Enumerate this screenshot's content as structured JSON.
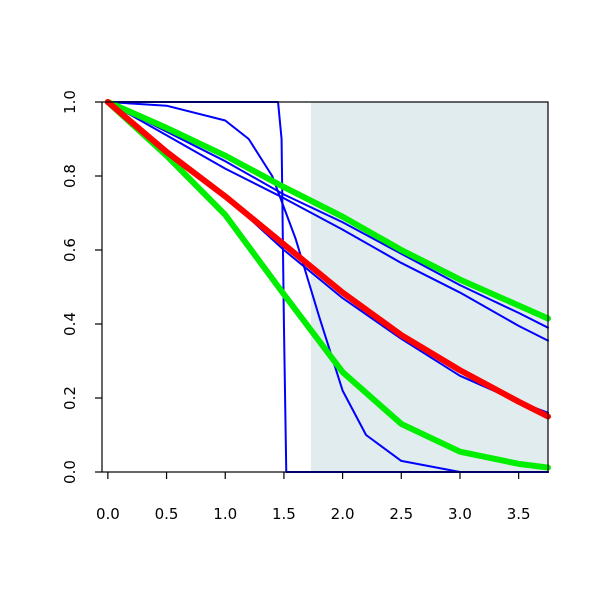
{
  "chart_data": {
    "type": "line",
    "title": "",
    "xlabel": "",
    "ylabel": "",
    "xlim": [
      -0.05,
      3.75
    ],
    "ylim": [
      0.0,
      1.0
    ],
    "grid": false,
    "legend": "none",
    "x_ticks": [
      0.0,
      0.5,
      1.0,
      1.5,
      2.0,
      2.5,
      3.0,
      3.5
    ],
    "x_tick_labels": [
      "0.0",
      "0.5",
      "1.0",
      "1.5",
      "2.0",
      "2.5",
      "3.0",
      "3.5"
    ],
    "y_ticks": [
      0.0,
      0.2,
      0.4,
      0.6,
      0.8,
      1.0
    ],
    "y_tick_labels": [
      "0.0",
      "0.2",
      "0.4",
      "0.6",
      "0.8",
      "1.0"
    ],
    "shaded_region": {
      "x_from": 1.73,
      "x_to": 3.75,
      "color": "#e0eced"
    },
    "series": [
      {
        "color": "#0000ff",
        "width": "thin",
        "x": [
          0,
          1.0,
          1.45,
          1.48,
          1.5,
          1.52,
          3.75
        ],
        "y": [
          1,
          1,
          1,
          0.9,
          0.4,
          0.0,
          0.0
        ]
      },
      {
        "color": "#0000ff",
        "width": "thin",
        "x": [
          0,
          0.5,
          1.0,
          1.2,
          1.4,
          1.6,
          1.8,
          2.0,
          2.2,
          2.5,
          3.0,
          3.75
        ],
        "y": [
          1,
          0.99,
          0.95,
          0.9,
          0.8,
          0.63,
          0.42,
          0.22,
          0.1,
          0.03,
          0.0,
          0.0
        ]
      },
      {
        "color": "#0000ff",
        "width": "thin",
        "x": [
          0,
          0.5,
          1.0,
          1.5,
          2.0,
          2.5,
          3.0,
          3.5,
          3.75
        ],
        "y": [
          1,
          0.872,
          0.745,
          0.6,
          0.47,
          0.36,
          0.26,
          0.19,
          0.16
        ]
      },
      {
        "color": "#0000ff",
        "width": "thin",
        "x": [
          0,
          0.5,
          1.0,
          1.5,
          2.0,
          2.5,
          3.0,
          3.5,
          3.75
        ],
        "y": [
          1,
          0.92,
          0.84,
          0.75,
          0.675,
          0.59,
          0.505,
          0.43,
          0.39
        ]
      },
      {
        "color": "#0000ff",
        "width": "thin",
        "x": [
          0,
          0.5,
          1.0,
          1.5,
          2.0,
          2.5,
          3.0,
          3.5,
          3.75
        ],
        "y": [
          1,
          0.91,
          0.82,
          0.74,
          0.655,
          0.565,
          0.485,
          0.395,
          0.355
        ]
      },
      {
        "color": "#0000ff",
        "width": "thin",
        "x": [
          0,
          0.5,
          1.0,
          1.5,
          2.0,
          2.5,
          3.0,
          3.5,
          3.75
        ],
        "y": [
          1,
          0.93,
          0.855,
          0.765,
          0.685,
          0.6,
          0.52,
          0.445,
          0.41
        ]
      },
      {
        "color": "#00ee00",
        "width": "thick",
        "x": [
          0,
          0.5,
          1.0,
          1.5,
          2.0,
          2.5,
          3.0,
          3.5,
          3.75
        ],
        "y": [
          1,
          0.93,
          0.855,
          0.77,
          0.69,
          0.6,
          0.52,
          0.45,
          0.415
        ]
      },
      {
        "color": "#00ee00",
        "width": "thick",
        "x": [
          0,
          0.5,
          1.0,
          1.5,
          2.0,
          2.5,
          3.0,
          3.5,
          3.75
        ],
        "y": [
          1,
          0.855,
          0.695,
          0.48,
          0.27,
          0.13,
          0.055,
          0.022,
          0.012
        ]
      },
      {
        "color": "#ff0000",
        "width": "thick",
        "x": [
          0,
          0.5,
          1.0,
          1.5,
          2.0,
          2.5,
          3.0,
          3.5,
          3.75
        ],
        "y": [
          1,
          0.865,
          0.745,
          0.615,
          0.485,
          0.37,
          0.275,
          0.19,
          0.15
        ]
      }
    ]
  }
}
